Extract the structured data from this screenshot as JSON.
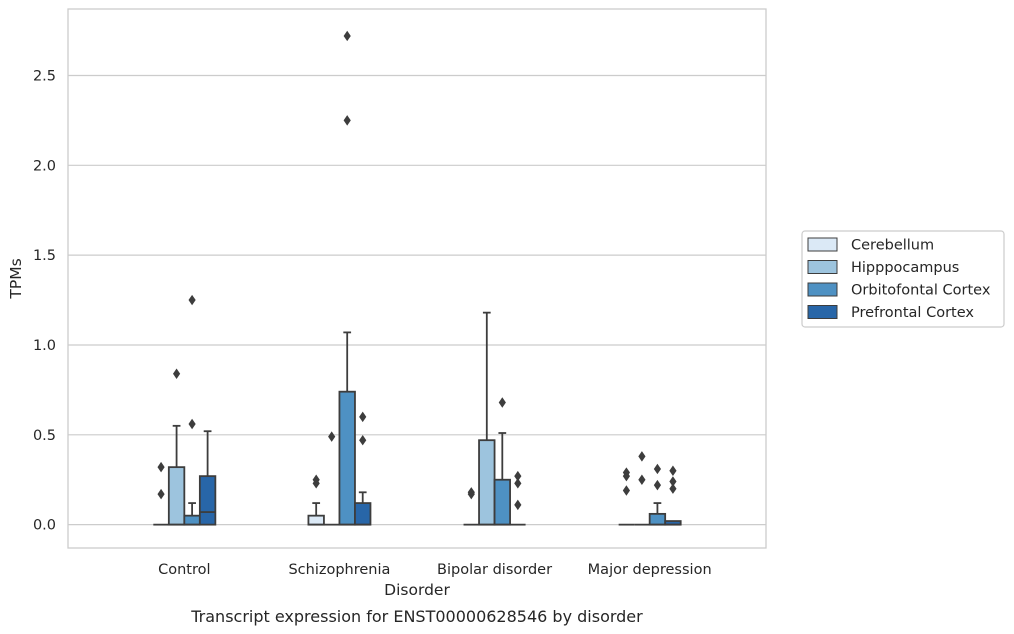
{
  "caption": "Transcript expression for ENST00000628546 by disorder",
  "chart_data": {
    "type": "box",
    "xlabel": "Disorder",
    "ylabel": "TPMs",
    "ylim": [
      -0.13,
      2.87
    ],
    "yticks": [
      "0.0",
      "0.5",
      "1.0",
      "1.5",
      "2.0",
      "2.5"
    ],
    "grid": "horizontal",
    "legend_position": "right",
    "categories": [
      "Control",
      "Schizophrenia",
      "Bipolar disorder",
      "Major depression"
    ],
    "series": [
      {
        "name": "Cerebellum",
        "color": "#dbe9f6",
        "boxes": [
          {
            "q1": 0,
            "median": 0,
            "q3": 0,
            "whisker_low": 0,
            "whisker_high": 0,
            "outliers": [
              0.32,
              0.17
            ]
          },
          {
            "q1": 0,
            "median": 0,
            "q3": 0.05,
            "whisker_low": 0,
            "whisker_high": 0.12,
            "outliers": [
              0.25,
              0.23
            ]
          },
          {
            "q1": 0,
            "median": 0,
            "q3": 0,
            "whisker_low": 0,
            "whisker_high": 0,
            "outliers": [
              0.18,
              0.17
            ]
          },
          {
            "q1": 0,
            "median": 0,
            "q3": 0,
            "whisker_low": 0,
            "whisker_high": 0,
            "outliers": [
              0.29,
              0.27,
              0.19
            ]
          }
        ]
      },
      {
        "name": "Hipppocampus",
        "color": "#9dc4de",
        "boxes": [
          {
            "q1": 0,
            "median": 0,
            "q3": 0.32,
            "whisker_low": 0,
            "whisker_high": 0.55,
            "outliers": [
              0.84
            ]
          },
          {
            "q1": 0,
            "median": 0,
            "q3": 0,
            "whisker_low": 0,
            "whisker_high": 0,
            "outliers": [
              0.49
            ]
          },
          {
            "q1": 0,
            "median": 0,
            "q3": 0.47,
            "whisker_low": 0,
            "whisker_high": 1.18,
            "outliers": []
          },
          {
            "q1": 0,
            "median": 0,
            "q3": 0,
            "whisker_low": 0,
            "whisker_high": 0,
            "outliers": [
              0.38,
              0.25
            ]
          }
        ]
      },
      {
        "name": "Orbitofontal Cortex",
        "color": "#4e91c3",
        "boxes": [
          {
            "q1": 0,
            "median": 0,
            "q3": 0.05,
            "whisker_low": 0,
            "whisker_high": 0.12,
            "outliers": [
              1.25,
              0.56
            ]
          },
          {
            "q1": 0,
            "median": 0,
            "q3": 0.74,
            "whisker_low": 0,
            "whisker_high": 1.07,
            "outliers": [
              2.72,
              2.25
            ]
          },
          {
            "q1": 0,
            "median": 0,
            "q3": 0.25,
            "whisker_low": 0,
            "whisker_high": 0.51,
            "outliers": [
              0.68
            ]
          },
          {
            "q1": 0,
            "median": 0,
            "q3": 0.06,
            "whisker_low": 0,
            "whisker_high": 0.12,
            "outliers": [
              0.31,
              0.22
            ]
          }
        ]
      },
      {
        "name": "Prefrontal Cortex",
        "color": "#2866a8",
        "boxes": [
          {
            "q1": 0,
            "median": 0.07,
            "q3": 0.27,
            "whisker_low": 0,
            "whisker_high": 0.52,
            "outliers": []
          },
          {
            "q1": 0,
            "median": 0,
            "q3": 0.12,
            "whisker_low": 0,
            "whisker_high": 0.18,
            "outliers": [
              0.6,
              0.47
            ]
          },
          {
            "q1": 0,
            "median": 0,
            "q3": 0,
            "whisker_low": 0,
            "whisker_high": 0,
            "outliers": [
              0.27,
              0.23,
              0.11
            ]
          },
          {
            "q1": 0,
            "median": 0,
            "q3": 0.02,
            "whisker_low": 0,
            "whisker_high": 0.02,
            "outliers": [
              0.3,
              0.24,
              0.2
            ]
          }
        ]
      }
    ]
  }
}
